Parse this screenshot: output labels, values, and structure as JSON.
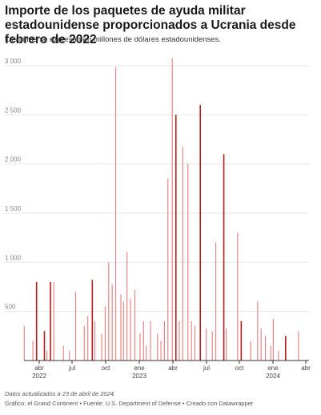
{
  "header": {
    "title": "Importe de los paquetes de ayuda militar estadounidense proporcionados a Ucrania desde febrero de 2022",
    "subtitle": "Las cifras se expresan en millones de dólares estadounidenses."
  },
  "footer": {
    "notes": "Datos actualizados a 23 de abril de 2024.",
    "source": "Gráfico: el Grand Continent • Fuente: U.S. Department of Defense • Creado con Datawrapper"
  },
  "colors": {
    "light": "#e8868a",
    "dark": "#b21e1e",
    "grid": "#e6e6e6",
    "axis": "#333333"
  },
  "chart_data": {
    "type": "bar",
    "ylim": [
      0,
      3000
    ],
    "y_ticks": [
      {
        "value": 0,
        "label": ""
      },
      {
        "value": 500,
        "label": "500"
      },
      {
        "value": 1000,
        "label": "1 000"
      },
      {
        "value": 1500,
        "label": "1 500"
      },
      {
        "value": 2000,
        "label": "2 000"
      },
      {
        "value": 2500,
        "label": "2 500"
      },
      {
        "value": 3000,
        "label": "3 000"
      }
    ],
    "x_ticks": [
      {
        "t": 2,
        "label": "abr",
        "year": "2022"
      },
      {
        "t": 5,
        "label": "jul",
        "year": ""
      },
      {
        "t": 8,
        "label": "oct",
        "year": ""
      },
      {
        "t": 11,
        "label": "ene",
        "year": "2023"
      },
      {
        "t": 14,
        "label": "abr",
        "year": ""
      },
      {
        "t": 17,
        "label": "jul",
        "year": ""
      },
      {
        "t": 20,
        "label": "oct",
        "year": ""
      },
      {
        "t": 23,
        "label": "ene",
        "year": "2024"
      },
      {
        "t": 26,
        "label": "abr",
        "year": ""
      }
    ],
    "series": [
      {
        "name": "",
        "values": [
          {
            "t": -0.05,
            "v": 350,
            "dark": false
          },
          {
            "t": 0.45,
            "v": 200,
            "dark": false
          },
          {
            "t": 0.65,
            "v": 800,
            "dark": true
          },
          {
            "t": 1.1,
            "v": 300,
            "dark": true
          },
          {
            "t": 1.25,
            "v": 100,
            "dark": false
          },
          {
            "t": 1.45,
            "v": 800,
            "dark": true
          },
          {
            "t": 1.65,
            "v": 800,
            "dark": false
          },
          {
            "t": 2.2,
            "v": 150,
            "dark": false
          },
          {
            "t": 2.55,
            "v": 100,
            "dark": false
          },
          {
            "t": 2.9,
            "v": 700,
            "dark": false
          },
          {
            "t": 3.4,
            "v": 350,
            "dark": false
          },
          {
            "t": 3.6,
            "v": 450,
            "dark": false
          },
          {
            "t": 3.85,
            "v": 820,
            "dark": true
          },
          {
            "t": 4.0,
            "v": 400,
            "dark": false
          },
          {
            "t": 4.4,
            "v": 270,
            "dark": false
          },
          {
            "t": 4.6,
            "v": 550,
            "dark": false
          },
          {
            "t": 4.8,
            "v": 1000,
            "dark": false
          },
          {
            "t": 5.0,
            "v": 775,
            "dark": false
          },
          {
            "t": 5.2,
            "v": 2990,
            "dark": false
          },
          {
            "t": 5.5,
            "v": 675,
            "dark": false
          },
          {
            "t": 5.65,
            "v": 600,
            "dark": false
          },
          {
            "t": 5.85,
            "v": 1100,
            "dark": false
          },
          {
            "t": 6.05,
            "v": 625,
            "dark": false
          },
          {
            "t": 6.3,
            "v": 720,
            "dark": false
          },
          {
            "t": 6.6,
            "v": 275,
            "dark": false
          },
          {
            "t": 6.8,
            "v": 400,
            "dark": false
          },
          {
            "t": 6.95,
            "v": 150,
            "dark": false
          },
          {
            "t": 7.2,
            "v": 400,
            "dark": false
          },
          {
            "t": 7.6,
            "v": 275,
            "dark": false
          },
          {
            "t": 7.8,
            "v": 200,
            "dark": false
          },
          {
            "t": 8.0,
            "v": 400,
            "dark": false
          },
          {
            "t": 8.2,
            "v": 1850,
            "dark": false
          },
          {
            "t": 8.45,
            "v": 3075,
            "dark": false
          },
          {
            "t": 8.65,
            "v": 2500,
            "dark": true
          },
          {
            "t": 8.85,
            "v": 400,
            "dark": false
          },
          {
            "t": 9.05,
            "v": 2175,
            "dark": false
          },
          {
            "t": 9.35,
            "v": 2000,
            "dark": false
          },
          {
            "t": 9.55,
            "v": 400,
            "dark": false
          },
          {
            "t": 9.75,
            "v": 350,
            "dark": false
          },
          {
            "t": 10.05,
            "v": 2600,
            "dark": true
          },
          {
            "t": 10.4,
            "v": 325,
            "dark": false
          },
          {
            "t": 10.75,
            "v": 300,
            "dark": false
          },
          {
            "t": 10.95,
            "v": 1200,
            "dark": false
          },
          {
            "t": 11.4,
            "v": 2100,
            "dark": true
          },
          {
            "t": 11.55,
            "v": 325,
            "dark": false
          },
          {
            "t": 12.2,
            "v": 1300,
            "dark": false
          },
          {
            "t": 12.4,
            "v": 400,
            "dark": true
          },
          {
            "t": 12.95,
            "v": 200,
            "dark": false
          },
          {
            "t": 13.35,
            "v": 600,
            "dark": false
          },
          {
            "t": 13.55,
            "v": 325,
            "dark": false
          },
          {
            "t": 13.8,
            "v": 250,
            "dark": false
          },
          {
            "t": 14.1,
            "v": 150,
            "dark": false
          },
          {
            "t": 14.25,
            "v": 425,
            "dark": false
          },
          {
            "t": 14.55,
            "v": 100,
            "dark": false
          },
          {
            "t": 14.95,
            "v": 250,
            "dark": true
          },
          {
            "t": 15.7,
            "v": 300,
            "dark": false
          }
        ]
      }
    ],
    "x_range": [
      -0.1,
      16.2
    ],
    "tick_positions": [
      0.8,
      3.8,
      6.8,
      9.8,
      12.8,
      15.8,
      18.8,
      21.8,
      24.8
    ]
  }
}
